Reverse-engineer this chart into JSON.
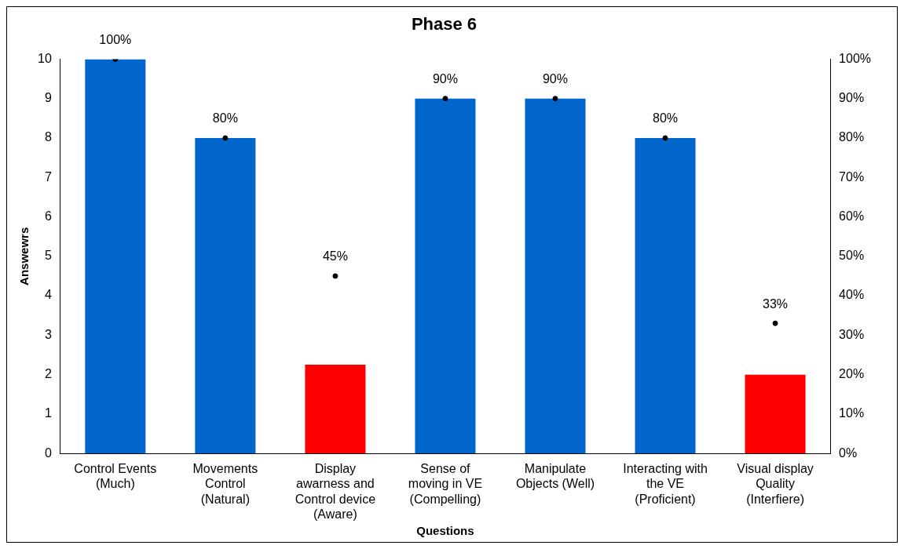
{
  "chart_data": {
    "type": "bar",
    "title": "Phase 6",
    "xlabel": "Questions",
    "ylabel": "Answewrs",
    "categories": [
      "Control Events\n(Much)",
      "Movements\nControl\n(Natural)",
      "Display\nawarness and\nControl device\n(Aware)",
      "Sense of\nmoving in VE\n(Compelling)",
      "Manipulate\nObjects (Well)",
      "Interacting with\nthe VE\n(Proficient)",
      "Visual display\nQuality\n(Interfiere)"
    ],
    "series": [
      {
        "type": "bar",
        "values": [
          10,
          8,
          2.25,
          9,
          9,
          8,
          2
        ],
        "colors": [
          "#0066cc",
          "#0066cc",
          "#ff0000",
          "#0066cc",
          "#0066cc",
          "#0066cc",
          "#ff0000"
        ]
      },
      {
        "type": "scatter",
        "axis": "y2",
        "color": "#000000",
        "values": [
          100,
          80,
          45,
          90,
          90,
          80,
          33
        ],
        "value_labels": [
          "100%",
          "80%",
          "45%",
          "90%",
          "90%",
          "80%",
          "33%"
        ]
      }
    ],
    "ylim": [
      0,
      10
    ],
    "yticks": [
      0,
      1,
      2,
      3,
      4,
      5,
      6,
      7,
      8,
      9,
      10
    ],
    "y2lim": [
      0,
      100
    ],
    "y2ticks": [
      {
        "value": 0,
        "label": "0%"
      },
      {
        "value": 10,
        "label": "10%"
      },
      {
        "value": 20,
        "label": "20%"
      },
      {
        "value": 30,
        "label": "30%"
      },
      {
        "value": 40,
        "label": "40%"
      },
      {
        "value": 50,
        "label": "50%"
      },
      {
        "value": 60,
        "label": "60%"
      },
      {
        "value": 70,
        "label": "70%"
      },
      {
        "value": 80,
        "label": "80%"
      },
      {
        "value": 90,
        "label": "90%"
      },
      {
        "value": 100,
        "label": "100%"
      }
    ],
    "marker": "circle",
    "grid": false,
    "legend": false
  }
}
